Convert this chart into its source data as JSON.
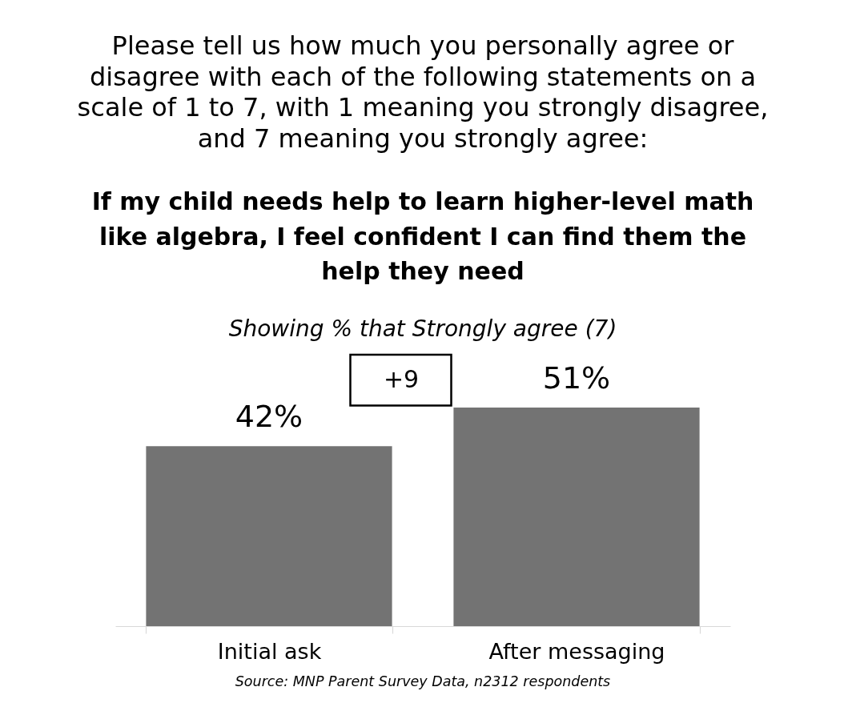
{
  "chart_data": {
    "type": "bar",
    "title": "Please tell us how much you personally agree or disagree with each of the following statements on a scale of 1 to 7, with 1 meaning you strongly disagree, and 7 meaning you strongly agree:",
    "subtitle": "If my child needs help to learn higher-level math like algebra, I feel confident I can find them the help they need",
    "annotations": [
      "Showing % that Strongly agree (7)",
      "+9",
      "Source: MNP Parent Survey Data, n2312 respondents"
    ],
    "categories": [
      "Initial ask",
      "After messaging"
    ],
    "values": [
      42,
      51
    ],
    "color": "#737373",
    "value_labels": [
      "42%",
      "51%"
    ]
  }
}
